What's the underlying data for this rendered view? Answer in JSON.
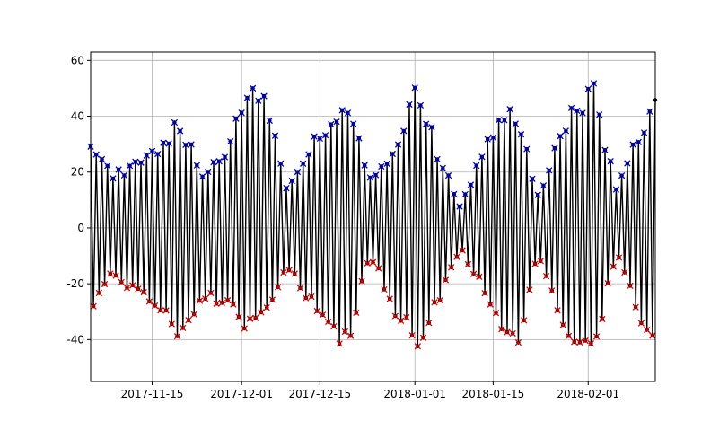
{
  "chart_data": {
    "type": "line",
    "title": "",
    "xlabel": "",
    "ylabel": "",
    "grid": true,
    "x_axis": {
      "type": "date",
      "range": [
        "2017-11-04",
        "2018-02-13"
      ],
      "ticks": [
        "2017-11-15",
        "2017-12-01",
        "2017-12-15",
        "2018-01-01",
        "2018-01-15",
        "2018-02-01"
      ]
    },
    "y_axis": {
      "range": [
        -55,
        63
      ],
      "ticks": [
        -40,
        -20,
        0,
        20,
        40,
        60
      ]
    },
    "series": [
      {
        "role": "water-level",
        "style": "black line with dot markers",
        "color": "#000000",
        "sampling": "twice daily (semi-diurnal)",
        "envelope": {
          "dates": [
            "2017-11-04",
            "2017-11-08",
            "2017-11-13",
            "2017-11-20",
            "2017-11-24",
            "2017-11-28",
            "2017-12-03",
            "2017-12-06",
            "2017-12-09",
            "2017-12-15",
            "2017-12-20",
            "2017-12-24",
            "2017-12-28",
            "2018-01-01",
            "2018-01-05",
            "2018-01-09",
            "2018-01-15",
            "2018-01-19",
            "2018-01-23",
            "2018-01-28",
            "2018-02-02",
            "2018-02-06",
            "2018-02-09",
            "2018-02-13"
          ],
          "high": [
            35,
            20,
            25,
            40,
            20,
            30,
            56,
            45,
            16,
            38,
            45,
            20,
            28,
            55,
            30,
            8,
            38,
            45,
            12,
            42,
            52,
            15,
            30,
            50
          ],
          "low": [
            -30,
            -18,
            -25,
            -42,
            -25,
            -30,
            -40,
            -35,
            -15,
            -35,
            -45,
            -10,
            -30,
            -45,
            -30,
            -8,
            -30,
            -48,
            -10,
            -40,
            -48,
            -10,
            -28,
            -48
          ]
        }
      },
      {
        "role": "daily-maxima",
        "style": "blue x markers",
        "color": "#0000cc",
        "marker": "x"
      },
      {
        "role": "daily-minima",
        "style": "red x markers",
        "color": "#dd0000",
        "marker": "x"
      }
    ]
  }
}
